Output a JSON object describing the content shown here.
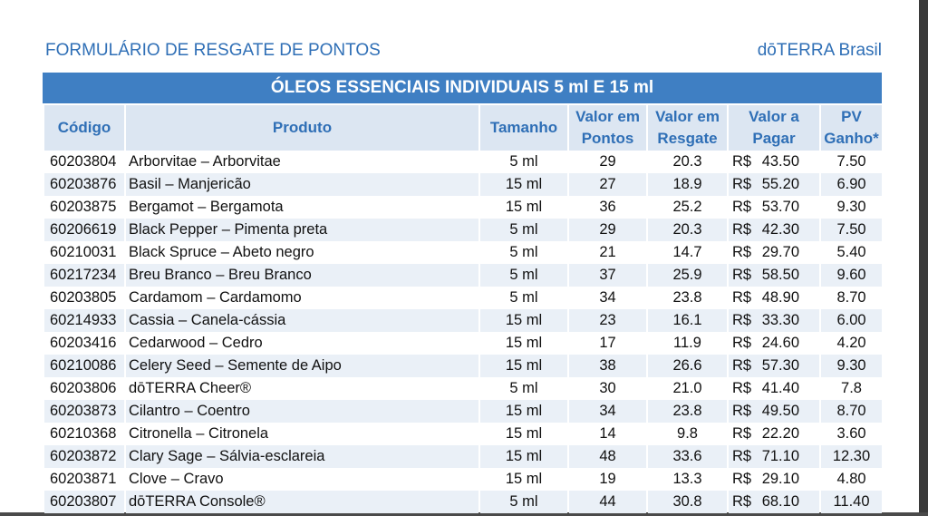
{
  "header": {
    "title": "FORMULÁRIO DE RESGATE DE PONTOS",
    "brand": "dōTERRA Brasil"
  },
  "banner": "ÓLEOS ESSENCIAIS INDIVIDUAIS 5 ml E 15 ml",
  "columns": {
    "code": "Código",
    "product": "Produto",
    "size": "Tamanho",
    "points": [
      "Valor em",
      "Pontos"
    ],
    "redeem": [
      "Valor em",
      "Resgate"
    ],
    "pay": [
      "Valor a",
      "Pagar"
    ],
    "pv": [
      "PV",
      "Ganho*"
    ]
  },
  "currency": "R$",
  "rows": [
    {
      "code": "60203804",
      "product": "Arborvitae – Arborvitae",
      "size": "5 ml",
      "points": "29",
      "redeem": "20.3",
      "pay": "43.50",
      "pv": "7.50"
    },
    {
      "code": "60203876",
      "product": "Basil – Manjericão",
      "size": "15 ml",
      "points": "27",
      "redeem": "18.9",
      "pay": "55.20",
      "pv": "6.90"
    },
    {
      "code": "60203875",
      "product": "Bergamot – Bergamota",
      "size": "15 ml",
      "points": "36",
      "redeem": "25.2",
      "pay": "53.70",
      "pv": "9.30"
    },
    {
      "code": "60206619",
      "product": "Black Pepper – Pimenta preta",
      "size": "5 ml",
      "points": "29",
      "redeem": "20.3",
      "pay": "42.30",
      "pv": "7.50"
    },
    {
      "code": "60210031",
      "product": "Black Spruce – Abeto negro",
      "size": "5 ml",
      "points": "21",
      "redeem": "14.7",
      "pay": "29.70",
      "pv": "5.40"
    },
    {
      "code": "60217234",
      "product": "Breu Branco – Breu Branco",
      "size": "5 ml",
      "points": "37",
      "redeem": "25.9",
      "pay": "58.50",
      "pv": "9.60"
    },
    {
      "code": "60203805",
      "product": "Cardamom – Cardamomo",
      "size": "5 ml",
      "points": "34",
      "redeem": "23.8",
      "pay": "48.90",
      "pv": "8.70"
    },
    {
      "code": "60214933",
      "product": "Cassia – Canela-cássia",
      "size": "15 ml",
      "points": "23",
      "redeem": "16.1",
      "pay": "33.30",
      "pv": "6.00"
    },
    {
      "code": "60203416",
      "product": "Cedarwood – Cedro",
      "size": "15 ml",
      "points": "17",
      "redeem": "11.9",
      "pay": "24.60",
      "pv": "4.20"
    },
    {
      "code": "60210086",
      "product": "Celery Seed – Semente de Aipo",
      "size": "15 ml",
      "points": "38",
      "redeem": "26.6",
      "pay": "57.30",
      "pv": "9.30"
    },
    {
      "code": "60203806",
      "product": "dōTERRA Cheer®",
      "size": "5 ml",
      "points": "30",
      "redeem": "21.0",
      "pay": "41.40",
      "pv": "7.8"
    },
    {
      "code": "60203873",
      "product": "Cilantro – Coentro",
      "size": "15 ml",
      "points": "34",
      "redeem": "23.8",
      "pay": "49.50",
      "pv": "8.70"
    },
    {
      "code": "60210368",
      "product": "Citronella – Citronela",
      "size": "15 ml",
      "points": "14",
      "redeem": "9.8",
      "pay": "22.20",
      "pv": "3.60"
    },
    {
      "code": "60203872",
      "product": "Clary Sage – Sálvia-esclareia",
      "size": "15 ml",
      "points": "48",
      "redeem": "33.6",
      "pay": "71.10",
      "pv": "12.30"
    },
    {
      "code": "60203871",
      "product": "Clove – Cravo",
      "size": "15 ml",
      "points": "19",
      "redeem": "13.3",
      "pay": "29.10",
      "pv": "4.80"
    },
    {
      "code": "60203807",
      "product": "dōTERRA Console®",
      "size": "5 ml",
      "points": "44",
      "redeem": "30.8",
      "pay": "68.10",
      "pv": "11.40"
    }
  ]
}
